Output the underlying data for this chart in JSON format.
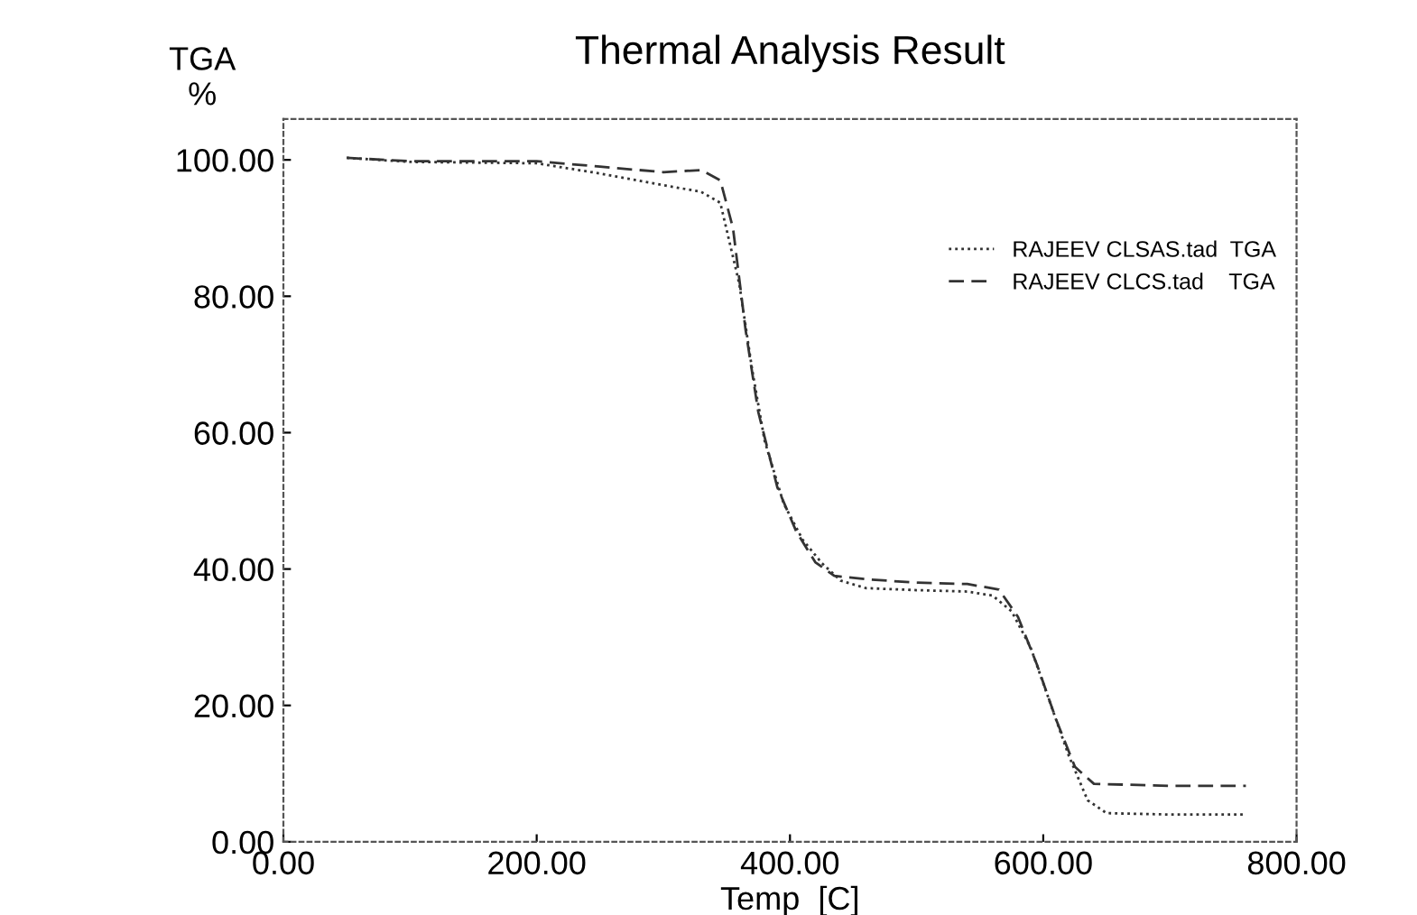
{
  "chart_data": {
    "type": "line",
    "title": "Thermal Analysis Result",
    "xlabel": "Temp  [C]",
    "ylabel": "TGA\n%",
    "xlim": [
      0,
      800
    ],
    "ylim": [
      0,
      106
    ],
    "xticks": [
      {
        "value": 0,
        "label": "0.00"
      },
      {
        "value": 200,
        "label": "200.00"
      },
      {
        "value": 400,
        "label": "400.00"
      },
      {
        "value": 600,
        "label": "600.00"
      },
      {
        "value": 800,
        "label": "800.00"
      }
    ],
    "yticks": [
      {
        "value": 0,
        "label": "0.00"
      },
      {
        "value": 20,
        "label": "20.00"
      },
      {
        "value": 40,
        "label": "40.00"
      },
      {
        "value": 60,
        "label": "60.00"
      },
      {
        "value": 80,
        "label": "80.00"
      },
      {
        "value": 100,
        "label": "100.00"
      }
    ],
    "grid": false,
    "legend": "right",
    "series": [
      {
        "name": "RAJEEV CLSAS.tad  TGA",
        "color": "#333333",
        "line_style": "dotted",
        "x": [
          50,
          100,
          200,
          250,
          300,
          330,
          345,
          360,
          370,
          380,
          395,
          410,
          425,
          440,
          460,
          500,
          540,
          560,
          575,
          590,
          605,
          620,
          635,
          650,
          700,
          760
        ],
        "values": [
          100.3,
          99.7,
          99.5,
          98,
          96.3,
          95.3,
          93.7,
          81.8,
          69.4,
          58.8,
          49.6,
          44.3,
          40.9,
          38.3,
          37.2,
          36.9,
          36.7,
          36.1,
          33.8,
          28.5,
          20.6,
          12.7,
          6.1,
          4.2,
          4,
          4
        ]
      },
      {
        "name": "RAJEEV CLCS.tad    TGA",
        "color": "#333333",
        "line_style": "dashed",
        "x": [
          50,
          100,
          200,
          250,
          300,
          330,
          345,
          355,
          365,
          375,
          390,
          405,
          420,
          435,
          460,
          500,
          540,
          565,
          580,
          595,
          610,
          625,
          640,
          700,
          760
        ],
        "values": [
          100.3,
          99.8,
          99.8,
          99,
          98.2,
          98.5,
          97,
          90,
          75,
          63,
          52,
          45.5,
          41,
          39,
          38.5,
          38,
          37.8,
          37,
          33,
          26,
          18,
          11,
          8.5,
          8.2,
          8.2
        ]
      }
    ]
  }
}
